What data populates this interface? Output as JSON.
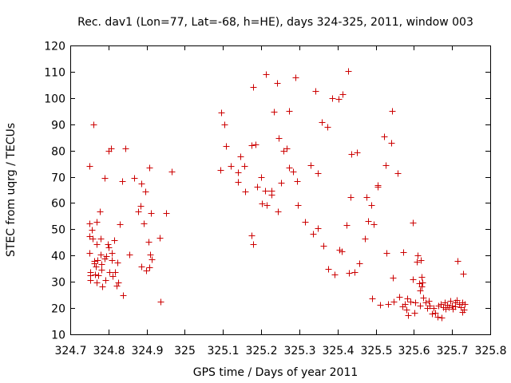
{
  "chart_data": {
    "type": "scatter",
    "title": "Rec. dav1 (Lon=77, Lat=-68, h=HE), days 324-325, 2011, window 003",
    "xlabel": "GPS time / Days of year 2011",
    "ylabel": "STEC from uqrg / TECUs",
    "xlim": [
      324.7,
      325.8
    ],
    "ylim": [
      10,
      120
    ],
    "xticks": [
      324.7,
      324.8,
      324.9,
      325,
      325.1,
      325.2,
      325.3,
      325.4,
      325.5,
      325.6,
      325.7,
      325.8
    ],
    "xtick_labels": [
      "324.7",
      "324.8",
      "324.9",
      "325",
      "325.1",
      "325.2",
      "325.3",
      "325.4",
      "325.5",
      "325.6",
      "325.7",
      "325.8"
    ],
    "yticks": [
      10,
      20,
      30,
      40,
      50,
      60,
      70,
      80,
      90,
      100,
      110,
      120
    ],
    "ytick_labels": [
      "10",
      "20",
      "30",
      "40",
      "50",
      "60",
      "70",
      "80",
      "90",
      "100",
      "110",
      "120"
    ],
    "grid": false,
    "marker": "plus",
    "color": "#cc0000",
    "points": [
      [
        324.75,
        74.2
      ],
      [
        324.751,
        52.3
      ],
      [
        324.75,
        47.4
      ],
      [
        324.751,
        41.1
      ],
      [
        324.752,
        33.8
      ],
      [
        324.752,
        32.4
      ],
      [
        324.752,
        30.6
      ],
      [
        324.757,
        49.9
      ],
      [
        324.759,
        46.6
      ],
      [
        324.76,
        89.9
      ],
      [
        324.762,
        38.1
      ],
      [
        324.763,
        37.1
      ],
      [
        324.764,
        32.8
      ],
      [
        324.767,
        35.8
      ],
      [
        324.768,
        44.3
      ],
      [
        324.769,
        52.9
      ],
      [
        324.77,
        29.9
      ],
      [
        324.772,
        38.2
      ],
      [
        324.774,
        32.4
      ],
      [
        324.778,
        56.9
      ],
      [
        324.779,
        46.5
      ],
      [
        324.78,
        40.4
      ],
      [
        324.781,
        34.5
      ],
      [
        324.782,
        36.6
      ],
      [
        324.783,
        28.2
      ],
      [
        324.789,
        38.9
      ],
      [
        324.79,
        69.6
      ],
      [
        324.791,
        30.8
      ],
      [
        324.795,
        39.9
      ],
      [
        324.798,
        44.4
      ],
      [
        324.8,
        43.0
      ],
      [
        324.801,
        79.8
      ],
      [
        324.802,
        33.8
      ],
      [
        324.806,
        80.8
      ],
      [
        324.808,
        38.3
      ],
      [
        324.809,
        41.1
      ],
      [
        324.81,
        32.3
      ],
      [
        324.815,
        45.8
      ],
      [
        324.818,
        33.6
      ],
      [
        324.822,
        28.6
      ],
      [
        324.823,
        37.2
      ],
      [
        324.825,
        29.7
      ],
      [
        324.83,
        51.8
      ],
      [
        324.838,
        24.8
      ],
      [
        324.836,
        68.4
      ],
      [
        324.845,
        80.8
      ],
      [
        324.854,
        40.5
      ],
      [
        324.867,
        69.6
      ],
      [
        324.878,
        56.8
      ],
      [
        324.884,
        58.9
      ],
      [
        324.886,
        67.3
      ],
      [
        324.887,
        35.8
      ],
      [
        324.893,
        52.1
      ],
      [
        324.896,
        64.4
      ],
      [
        324.899,
        34.3
      ],
      [
        324.905,
        45.1
      ],
      [
        324.906,
        35.6
      ],
      [
        324.906,
        73.6
      ],
      [
        324.91,
        40.3
      ],
      [
        324.912,
        56.1
      ],
      [
        324.913,
        38.6
      ],
      [
        324.936,
        22.4
      ],
      [
        324.935,
        46.7
      ],
      [
        324.951,
        56.1
      ],
      [
        324.965,
        72.1
      ],
      [
        325.093,
        72.7
      ],
      [
        325.095,
        94.4
      ],
      [
        325.103,
        89.9
      ],
      [
        325.107,
        81.7
      ],
      [
        325.12,
        74.1
      ],
      [
        325.14,
        71.8
      ],
      [
        325.14,
        67.9
      ],
      [
        325.145,
        77.7
      ],
      [
        325.155,
        74.2
      ],
      [
        325.157,
        64.4
      ],
      [
        325.174,
        82.0
      ],
      [
        325.175,
        47.6
      ],
      [
        325.178,
        104.3
      ],
      [
        325.179,
        44.4
      ],
      [
        325.186,
        82.4
      ],
      [
        325.19,
        66.1
      ],
      [
        325.2,
        69.8
      ],
      [
        325.201,
        59.8
      ],
      [
        325.21,
        64.8
      ],
      [
        325.214,
        59.2
      ],
      [
        325.213,
        109.2
      ],
      [
        325.227,
        64.6
      ],
      [
        325.226,
        63.2
      ],
      [
        325.233,
        94.7
      ],
      [
        325.241,
        105.6
      ],
      [
        325.243,
        56.8
      ],
      [
        325.246,
        84.6
      ],
      [
        325.253,
        67.6
      ],
      [
        325.258,
        79.8
      ],
      [
        325.266,
        80.8
      ],
      [
        325.272,
        73.5
      ],
      [
        325.273,
        95.1
      ],
      [
        325.283,
        72.1
      ],
      [
        325.289,
        107.7
      ],
      [
        325.293,
        68.4
      ],
      [
        325.297,
        59.2
      ],
      [
        325.315,
        52.8
      ],
      [
        325.33,
        74.5
      ],
      [
        325.335,
        48.4
      ],
      [
        325.342,
        102.7
      ],
      [
        325.349,
        71.4
      ],
      [
        325.349,
        50.5
      ],
      [
        325.359,
        90.8
      ],
      [
        325.363,
        43.6
      ],
      [
        325.373,
        88.9
      ],
      [
        325.375,
        34.8
      ],
      [
        325.385,
        100.0
      ],
      [
        325.393,
        32.9
      ],
      [
        325.402,
        99.5
      ],
      [
        325.404,
        42.2
      ],
      [
        325.41,
        41.6
      ],
      [
        325.414,
        101.4
      ],
      [
        325.424,
        51.5
      ],
      [
        325.427,
        110.3
      ],
      [
        325.43,
        33.3
      ],
      [
        325.435,
        62.3
      ],
      [
        325.437,
        78.7
      ],
      [
        325.444,
        33.7
      ],
      [
        325.451,
        79.4
      ],
      [
        325.458,
        37.1
      ],
      [
        325.472,
        46.6
      ],
      [
        325.475,
        62.2
      ],
      [
        325.48,
        53.2
      ],
      [
        325.489,
        59.2
      ],
      [
        325.49,
        23.8
      ],
      [
        325.494,
        52.0
      ],
      [
        325.505,
        66.8
      ],
      [
        325.506,
        66.1
      ],
      [
        325.511,
        21.3
      ],
      [
        325.522,
        85.3
      ],
      [
        325.527,
        74.5
      ],
      [
        325.529,
        41.1
      ],
      [
        325.532,
        21.6
      ],
      [
        325.541,
        83.0
      ],
      [
        325.543,
        95.1
      ],
      [
        325.545,
        31.5
      ],
      [
        325.546,
        22.5
      ],
      [
        325.557,
        71.4
      ],
      [
        325.561,
        24.3
      ],
      [
        325.569,
        20.6
      ],
      [
        325.572,
        41.2
      ],
      [
        325.576,
        21.4
      ],
      [
        325.581,
        19.4
      ],
      [
        325.583,
        23.6
      ],
      [
        325.585,
        17.4
      ],
      [
        325.591,
        22.4
      ],
      [
        325.597,
        52.4
      ],
      [
        325.598,
        31.1
      ],
      [
        325.601,
        18.2
      ],
      [
        325.604,
        22.2
      ],
      [
        325.608,
        37.6
      ],
      [
        325.61,
        40.2
      ],
      [
        325.614,
        29.5
      ],
      [
        325.615,
        26.8
      ],
      [
        325.616,
        21.0
      ],
      [
        325.618,
        38.4
      ],
      [
        325.62,
        32.0
      ],
      [
        325.621,
        28.3
      ],
      [
        325.622,
        29.8
      ],
      [
        325.624,
        23.9
      ],
      [
        325.63,
        22.3
      ],
      [
        325.634,
        20.0
      ],
      [
        325.64,
        22.7
      ],
      [
        325.642,
        20.9
      ],
      [
        325.648,
        17.8
      ],
      [
        325.652,
        20.0
      ],
      [
        325.656,
        18.2
      ],
      [
        325.663,
        16.8
      ],
      [
        325.665,
        20.9
      ],
      [
        325.67,
        21.6
      ],
      [
        325.673,
        16.4
      ],
      [
        325.677,
        20.4
      ],
      [
        325.681,
        22.3
      ],
      [
        325.683,
        19.6
      ],
      [
        325.688,
        21.2
      ],
      [
        325.691,
        20.3
      ],
      [
        325.696,
        22.8
      ],
      [
        325.699,
        20.9
      ],
      [
        325.701,
        19.6
      ],
      [
        325.707,
        22.1
      ],
      [
        325.708,
        20.7
      ],
      [
        325.712,
        23.2
      ],
      [
        325.715,
        38.1
      ],
      [
        325.719,
        21.4
      ],
      [
        325.722,
        20.3
      ],
      [
        325.726,
        22.2
      ],
      [
        325.727,
        18.4
      ],
      [
        325.728,
        33.0
      ],
      [
        325.73,
        19.4
      ],
      [
        325.733,
        21.6
      ]
    ]
  }
}
